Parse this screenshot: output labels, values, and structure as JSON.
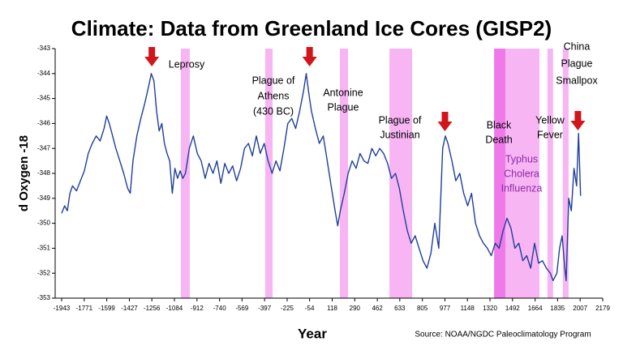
{
  "chart_data": {
    "type": "line",
    "title": "Climate: Data from Greenland Ice Cores (GISP2)",
    "x_label": "Year",
    "y_label": "d Oxygen -18",
    "source": "Source: NOAA/NGDC Paleoclimatology Program",
    "color": "#1f3f9a",
    "x": [
      -1943,
      -1920,
      -1900,
      -1880,
      -1860,
      -1830,
      -1800,
      -1770,
      -1740,
      -1710,
      -1680,
      -1650,
      -1620,
      -1600,
      -1580,
      -1560,
      -1530,
      -1500,
      -1470,
      -1440,
      -1420,
      -1400,
      -1370,
      -1340,
      -1310,
      -1280,
      -1260,
      -1240,
      -1220,
      -1200,
      -1180,
      -1160,
      -1140,
      -1120,
      -1100,
      -1080,
      -1060,
      -1040,
      -1020,
      -1000,
      -970,
      -940,
      -910,
      -880,
      -850,
      -820,
      -790,
      -760,
      -730,
      -700,
      -670,
      -640,
      -610,
      -580,
      -550,
      -520,
      -490,
      -460,
      -430,
      -400,
      -370,
      -340,
      -310,
      -280,
      -250,
      -220,
      -190,
      -160,
      -130,
      -100,
      -80,
      -60,
      -40,
      -10,
      20,
      50,
      80,
      110,
      140,
      160,
      180,
      210,
      240,
      270,
      300,
      330,
      360,
      390,
      420,
      450,
      480,
      510,
      540,
      570,
      600,
      630,
      660,
      690,
      720,
      750,
      780,
      810,
      840,
      870,
      900,
      930,
      960,
      980,
      1000,
      1030,
      1060,
      1090,
      1120,
      1150,
      1180,
      1210,
      1240,
      1270,
      1300,
      1330,
      1360,
      1390,
      1420,
      1450,
      1480,
      1510,
      1540,
      1570,
      1600,
      1630,
      1660,
      1690,
      1720,
      1750,
      1780,
      1800,
      1830,
      1850,
      1870,
      1890,
      1900,
      1920,
      1940,
      1960,
      1980,
      1995,
      2010
    ],
    "values": [
      -349.6,
      -349.3,
      -349.5,
      -348.8,
      -348.5,
      -348.7,
      -348.3,
      -347.9,
      -347.2,
      -346.8,
      -346.5,
      -346.7,
      -346.2,
      -345.7,
      -346.0,
      -346.4,
      -347.0,
      -347.5,
      -348.0,
      -348.6,
      -348.8,
      -347.5,
      -346.5,
      -345.8,
      -345.2,
      -344.5,
      -344.0,
      -344.3,
      -345.5,
      -346.3,
      -346.0,
      -346.8,
      -347.2,
      -347.5,
      -348.8,
      -347.8,
      -348.2,
      -347.9,
      -348.2,
      -348.0,
      -347.0,
      -346.5,
      -347.2,
      -347.5,
      -348.2,
      -347.6,
      -348.0,
      -347.5,
      -348.4,
      -347.6,
      -348.0,
      -347.7,
      -348.3,
      -347.8,
      -347.0,
      -346.8,
      -347.3,
      -346.5,
      -347.2,
      -346.8,
      -347.5,
      -348.0,
      -347.5,
      -347.9,
      -347.0,
      -346.0,
      -345.8,
      -346.2,
      -345.5,
      -344.7,
      -344.0,
      -344.8,
      -345.5,
      -346.2,
      -346.8,
      -346.5,
      -347.5,
      -348.5,
      -349.5,
      -350.1,
      -349.5,
      -348.8,
      -348.0,
      -347.5,
      -347.8,
      -347.2,
      -347.5,
      -347.6,
      -347.0,
      -347.3,
      -347.0,
      -347.2,
      -347.6,
      -348.2,
      -348.0,
      -348.6,
      -349.5,
      -350.3,
      -350.8,
      -350.5,
      -351.0,
      -351.5,
      -351.8,
      -351.2,
      -350.0,
      -351.0,
      -347.0,
      -346.5,
      -346.8,
      -347.5,
      -348.3,
      -348.0,
      -348.8,
      -349.3,
      -348.8,
      -350.0,
      -350.5,
      -350.8,
      -351.0,
      -351.3,
      -350.8,
      -351.0,
      -350.3,
      -349.8,
      -350.2,
      -351.0,
      -350.8,
      -351.5,
      -351.3,
      -351.8,
      -350.8,
      -351.6,
      -351.5,
      -351.8,
      -352.0,
      -352.3,
      -352.0,
      -351.0,
      -350.5,
      -351.8,
      -352.3,
      -349.0,
      -349.5,
      -347.8,
      -348.5,
      -346.4,
      -348.9
    ],
    "xlim": [
      -1943,
      2179
    ],
    "xticks": [
      -1943,
      -1771,
      -1599,
      -1427,
      -1256,
      -1084,
      -912,
      -740,
      -569,
      -397,
      -225,
      -54,
      118,
      290,
      462,
      633,
      805,
      977,
      1148,
      1320,
      1492,
      1664,
      1835,
      2007,
      2179
    ],
    "ylim": [
      -353,
      -343
    ],
    "yticks": [
      -343,
      -344,
      -345,
      -346,
      -347,
      -348,
      -349,
      -350,
      -351,
      -352,
      -353
    ],
    "shaded_periods": [
      {
        "start": -1035,
        "end": -967,
        "color": "#f7a8f2"
      },
      {
        "start": -392,
        "end": -336,
        "color": "#f7a8f2"
      },
      {
        "start": 177,
        "end": 239,
        "color": "#f7a8f2"
      },
      {
        "start": 554,
        "end": 727,
        "color": "#f7a8f2"
      },
      {
        "start": 1357,
        "end": 1697,
        "color": "#f7a8f2"
      },
      {
        "start": 1351,
        "end": 1437,
        "color": "#ee6fe6"
      },
      {
        "start": 1758,
        "end": 1801,
        "color": "#f7a8f2"
      },
      {
        "start": 1875,
        "end": 1919,
        "color": "#f7a8f2"
      }
    ],
    "arrows_x": [
      -1256,
      -54,
      977,
      1990
    ],
    "arrow_color": "#d0161b",
    "annotations": [
      {
        "lines": [
          "Leprosy"
        ]
      },
      {
        "lines": [
          "Plague of",
          "Athens",
          "(430 BC)"
        ]
      },
      {
        "lines": [
          "Antonine",
          "Plague"
        ]
      },
      {
        "lines": [
          "Plague of",
          "Justinian"
        ]
      },
      {
        "lines": [
          "Black",
          "Death"
        ]
      },
      {
        "lines": [
          "Typhus",
          "Cholera",
          "Influenza"
        ],
        "color": "#8a2aa8"
      },
      {
        "lines": [
          "Yellow",
          "Fever"
        ]
      },
      {
        "lines": [
          "China",
          "Plague",
          "Smallpox"
        ]
      }
    ]
  }
}
